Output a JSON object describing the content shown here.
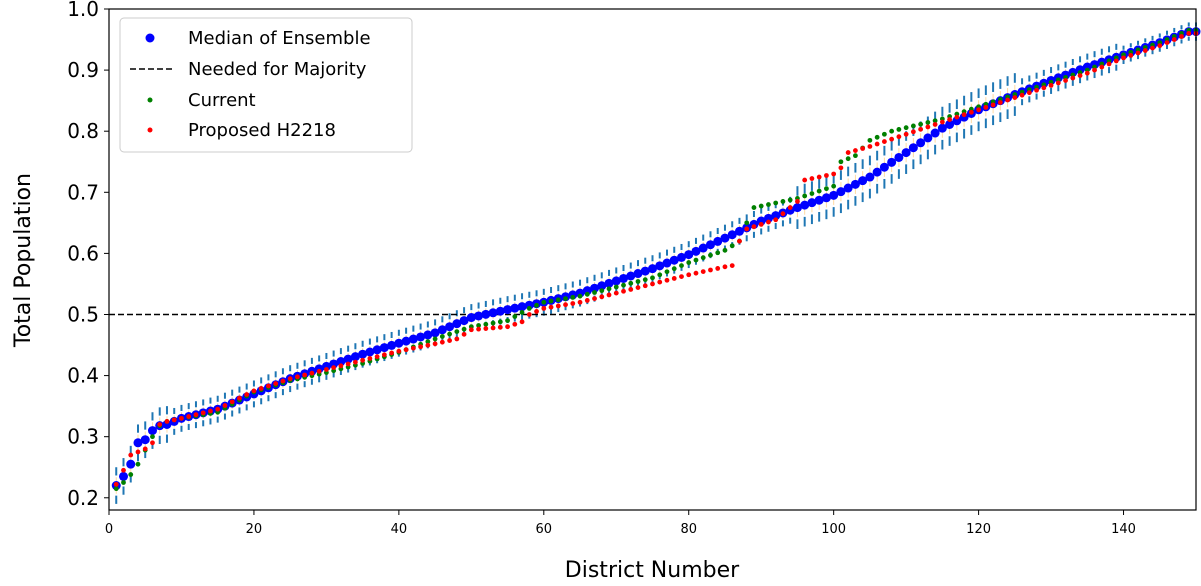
{
  "chart_data": {
    "type": "scatter",
    "xlabel": "District Number",
    "ylabel": "Total Population",
    "xlim": [
      0,
      150
    ],
    "ylim": [
      0.18,
      1.0
    ],
    "xticks": [
      0,
      20,
      40,
      60,
      80,
      100,
      120,
      140
    ],
    "yticks": [
      0.2,
      0.3,
      0.4,
      0.5,
      0.6,
      0.7,
      0.8,
      0.9,
      1.0
    ],
    "grid": false,
    "legend_position": "top-left",
    "majority_line": {
      "name": "Needed for Majority",
      "y": 0.5,
      "color": "#000000"
    },
    "ensemble_range": {
      "color": "#1f77b4",
      "median_color": "#ffc266"
    },
    "median_anchors": [
      [
        1,
        0.22
      ],
      [
        2,
        0.235
      ],
      [
        3,
        0.255
      ],
      [
        4,
        0.29
      ],
      [
        5,
        0.295
      ],
      [
        6,
        0.31
      ],
      [
        7,
        0.318
      ],
      [
        8,
        0.32
      ],
      [
        10,
        0.33
      ],
      [
        15,
        0.345
      ],
      [
        20,
        0.37
      ],
      [
        25,
        0.395
      ],
      [
        30,
        0.415
      ],
      [
        35,
        0.435
      ],
      [
        40,
        0.453
      ],
      [
        45,
        0.47
      ],
      [
        50,
        0.495
      ],
      [
        55,
        0.508
      ],
      [
        60,
        0.52
      ],
      [
        65,
        0.535
      ],
      [
        70,
        0.555
      ],
      [
        75,
        0.575
      ],
      [
        80,
        0.598
      ],
      [
        85,
        0.625
      ],
      [
        90,
        0.653
      ],
      [
        95,
        0.675
      ],
      [
        100,
        0.695
      ],
      [
        105,
        0.725
      ],
      [
        110,
        0.765
      ],
      [
        115,
        0.805
      ],
      [
        120,
        0.835
      ],
      [
        125,
        0.86
      ],
      [
        130,
        0.883
      ],
      [
        135,
        0.905
      ],
      [
        140,
        0.925
      ],
      [
        145,
        0.945
      ],
      [
        149,
        0.963
      ]
    ],
    "series": [
      {
        "name": "Median of Ensemble",
        "color": "#0000ff",
        "marker_size": 4.5
      },
      {
        "name": "Current",
        "color": "#008000",
        "marker_size": 2.4,
        "anchors": [
          [
            1,
            0.215
          ],
          [
            2,
            0.225
          ],
          [
            3,
            0.238
          ],
          [
            4,
            0.255
          ],
          [
            5,
            0.278
          ],
          [
            6,
            0.3
          ],
          [
            7,
            0.318
          ],
          [
            8,
            0.325
          ],
          [
            10,
            0.33
          ],
          [
            15,
            0.34
          ],
          [
            20,
            0.373
          ],
          [
            25,
            0.392
          ],
          [
            30,
            0.405
          ],
          [
            35,
            0.42
          ],
          [
            40,
            0.438
          ],
          [
            45,
            0.46
          ],
          [
            50,
            0.48
          ],
          [
            55,
            0.49
          ],
          [
            58,
            0.51
          ],
          [
            60,
            0.52
          ],
          [
            65,
            0.53
          ],
          [
            70,
            0.545
          ],
          [
            75,
            0.56
          ],
          [
            80,
            0.585
          ],
          [
            85,
            0.605
          ],
          [
            87,
            0.62
          ],
          [
            88,
            0.65
          ],
          [
            89,
            0.675
          ],
          [
            95,
            0.69
          ],
          [
            100,
            0.71
          ],
          [
            101,
            0.75
          ],
          [
            102,
            0.755
          ],
          [
            103,
            0.76
          ],
          [
            105,
            0.785
          ],
          [
            108,
            0.8
          ],
          [
            115,
            0.82
          ],
          [
            120,
            0.84
          ],
          [
            125,
            0.86
          ],
          [
            130,
            0.88
          ],
          [
            135,
            0.9
          ],
          [
            140,
            0.925
          ],
          [
            145,
            0.945
          ],
          [
            149,
            0.965
          ]
        ]
      },
      {
        "name": "Proposed H2218",
        "color": "#ff0000",
        "marker_size": 2.4,
        "anchors": [
          [
            1,
            0.222
          ],
          [
            2,
            0.245
          ],
          [
            3,
            0.27
          ],
          [
            4,
            0.275
          ],
          [
            5,
            0.28
          ],
          [
            6,
            0.29
          ],
          [
            7,
            0.32
          ],
          [
            8,
            0.325
          ],
          [
            10,
            0.33
          ],
          [
            15,
            0.345
          ],
          [
            20,
            0.375
          ],
          [
            25,
            0.395
          ],
          [
            30,
            0.41
          ],
          [
            35,
            0.425
          ],
          [
            40,
            0.44
          ],
          [
            45,
            0.452
          ],
          [
            48,
            0.46
          ],
          [
            50,
            0.475
          ],
          [
            55,
            0.48
          ],
          [
            57,
            0.488
          ],
          [
            58,
            0.5
          ],
          [
            60,
            0.51
          ],
          [
            65,
            0.52
          ],
          [
            70,
            0.535
          ],
          [
            75,
            0.55
          ],
          [
            80,
            0.565
          ],
          [
            85,
            0.578
          ],
          [
            86,
            0.58
          ],
          [
            87,
            0.62
          ],
          [
            88,
            0.64
          ],
          [
            92,
            0.655
          ],
          [
            95,
            0.685
          ],
          [
            96,
            0.72
          ],
          [
            100,
            0.73
          ],
          [
            101,
            0.74
          ],
          [
            102,
            0.765
          ],
          [
            105,
            0.775
          ],
          [
            110,
            0.795
          ],
          [
            115,
            0.815
          ],
          [
            120,
            0.835
          ],
          [
            125,
            0.855
          ],
          [
            130,
            0.875
          ],
          [
            135,
            0.895
          ],
          [
            140,
            0.92
          ],
          [
            145,
            0.94
          ],
          [
            149,
            0.96
          ]
        ]
      }
    ]
  }
}
